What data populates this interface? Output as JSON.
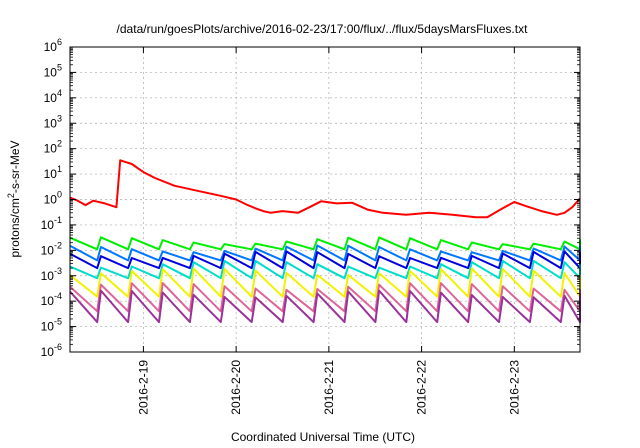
{
  "chart_data": {
    "type": "line",
    "title": "/data/run/goesPlots/archive/2016-02-23/17:00/flux/../flux/5daysMarsFluxes.txt",
    "xlabel": "Coordinated Universal Time (UTC)",
    "ylabel": {
      "prefix": "protons/cm",
      "superscript": "2",
      "suffix": "-s-sr-MeV"
    },
    "x_range": [
      "2016-02-18 05:00",
      "2016-02-23 17:00"
    ],
    "x_ticks": [
      "2016-2-19",
      "2016-2-20",
      "2016-2-21",
      "2016-2-22",
      "2016-2-23"
    ],
    "y_scale": "log",
    "y_range": [
      1e-06,
      1000000.0
    ],
    "y_ticks": [
      {
        "base": "10",
        "exp": "-6"
      },
      {
        "base": "10",
        "exp": "-5"
      },
      {
        "base": "10",
        "exp": "-4"
      },
      {
        "base": "10",
        "exp": "-3"
      },
      {
        "base": "10",
        "exp": "-2"
      },
      {
        "base": "10",
        "exp": "-1"
      },
      {
        "base": "10",
        "exp": "0"
      },
      {
        "base": "10",
        "exp": "1"
      },
      {
        "base": "10",
        "exp": "2"
      },
      {
        "base": "10",
        "exp": "3"
      },
      {
        "base": "10",
        "exp": "4"
      },
      {
        "base": "10",
        "exp": "5"
      },
      {
        "base": "10",
        "exp": "6"
      }
    ],
    "grid": true,
    "series": [
      {
        "color": "#ff0000",
        "points": [
          [
            "2016-02-18 05:00",
            1.2
          ],
          [
            "2016-02-18 07:00",
            0.9
          ],
          [
            "2016-02-18 09:00",
            0.6
          ],
          [
            "2016-02-18 11:00",
            0.9
          ],
          [
            "2016-02-18 14:00",
            0.7
          ],
          [
            "2016-02-18 17:00",
            0.5
          ],
          [
            "2016-02-18 18:00",
            35
          ],
          [
            "2016-02-18 21:00",
            25
          ],
          [
            "2016-02-19 00:00",
            12
          ],
          [
            "2016-02-19 03:00",
            7
          ],
          [
            "2016-02-19 08:00",
            3.5
          ],
          [
            "2016-02-19 14:00",
            2.2
          ],
          [
            "2016-02-19 20:00",
            1.4
          ],
          [
            "2016-02-20 00:00",
            1.0
          ],
          [
            "2016-02-20 03:00",
            0.6
          ],
          [
            "2016-02-20 05:00",
            0.45
          ],
          [
            "2016-02-20 07:00",
            0.35
          ],
          [
            "2016-02-20 09:00",
            0.3
          ],
          [
            "2016-02-20 12:00",
            0.35
          ],
          [
            "2016-02-20 16:00",
            0.3
          ],
          [
            "2016-02-20 19:00",
            0.5
          ],
          [
            "2016-02-20 22:00",
            0.85
          ],
          [
            "2016-02-21 02:00",
            0.7
          ],
          [
            "2016-02-21 06:00",
            0.75
          ],
          [
            "2016-02-21 10:00",
            0.4
          ],
          [
            "2016-02-21 14:00",
            0.3
          ],
          [
            "2016-02-21 20:00",
            0.25
          ],
          [
            "2016-02-22 02:00",
            0.3
          ],
          [
            "2016-02-22 08:00",
            0.25
          ],
          [
            "2016-02-22 14:00",
            0.2
          ],
          [
            "2016-02-22 17:00",
            0.2
          ],
          [
            "2016-02-22 21:00",
            0.45
          ],
          [
            "2016-02-23 00:00",
            0.8
          ],
          [
            "2016-02-23 03:00",
            0.55
          ],
          [
            "2016-02-23 07:00",
            0.35
          ],
          [
            "2016-02-23 11:00",
            0.25
          ],
          [
            "2016-02-23 13:00",
            0.3
          ],
          [
            "2016-02-23 15:00",
            0.5
          ],
          [
            "2016-02-23 17:00",
            1.1
          ]
        ]
      },
      {
        "color": "#00ee00",
        "base": 0.025,
        "sawtooth_low": 0.011,
        "period_hours": 8,
        "points": []
      },
      {
        "color": "#0077ff",
        "base": 0.012,
        "sawtooth_low": 0.004,
        "period_hours": 8,
        "points": []
      },
      {
        "color": "#0000dd",
        "base": 0.007,
        "sawtooth_low": 0.002,
        "period_hours": 8,
        "points": []
      },
      {
        "color": "#00ddcc",
        "base": 0.003,
        "sawtooth_low": 0.0008,
        "period_hours": 8,
        "points": []
      },
      {
        "color": "#f2f200",
        "base": 0.0015,
        "sawtooth_low": 0.00015,
        "period_hours": 8,
        "points": []
      },
      {
        "color": "#dd6699",
        "base": 0.0004,
        "sawtooth_low": 4e-05,
        "period_hours": 8,
        "points": []
      },
      {
        "color": "#993399",
        "base": 0.0002,
        "sawtooth_low": 1.5e-05,
        "period_hours": 8,
        "points": []
      }
    ]
  }
}
